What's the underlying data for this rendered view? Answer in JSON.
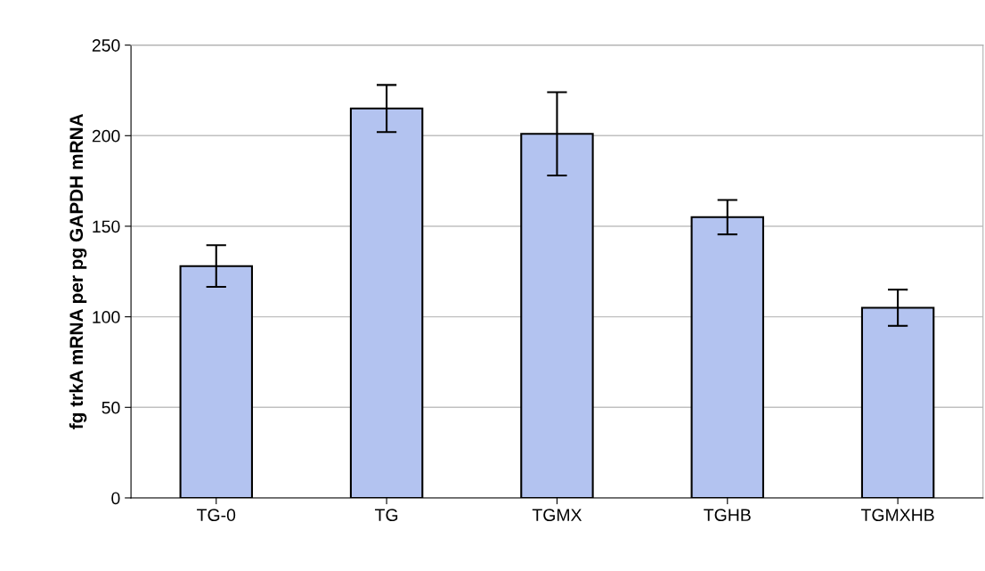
{
  "chart_data": {
    "type": "bar",
    "ylabel": "fg trkA mRNA per pg GAPDH mRNA",
    "categories": [
      "TG-0",
      "TG",
      "TGMX",
      "TGHB",
      "TGMXHB"
    ],
    "values": [
      128,
      215,
      201,
      155,
      105
    ],
    "errors": [
      11.5,
      13,
      23,
      9.5,
      10
    ],
    "color": "#b3c3f0",
    "ylim": [
      0,
      250
    ],
    "yticks": [
      0,
      50,
      100,
      150,
      200,
      250
    ],
    "grid": "y",
    "legend": false
  }
}
